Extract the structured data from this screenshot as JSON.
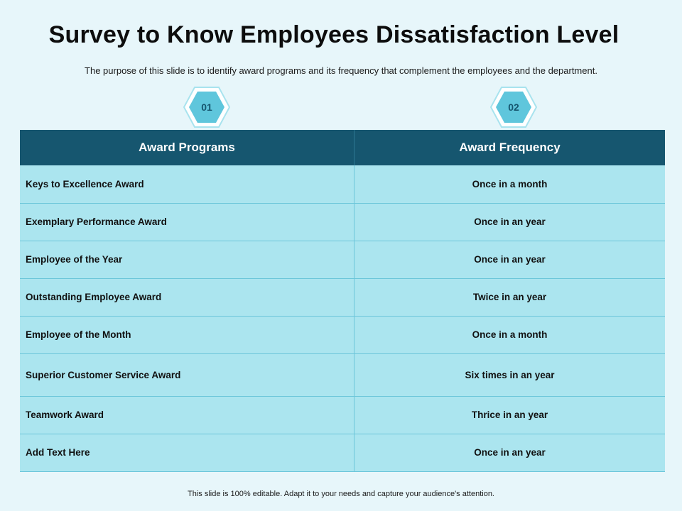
{
  "title": "Survey to Know Employees Dissatisfaction Level",
  "subtitle": "The purpose of this slide is to identify award programs and its frequency that complement the employees and the department.",
  "badges": [
    "01",
    "02"
  ],
  "table": {
    "headers": [
      "Award Programs",
      "Award Frequency"
    ],
    "rows": [
      [
        "Keys to Excellence Award",
        "Once in a month"
      ],
      [
        "Exemplary Performance Award",
        "Once in an year"
      ],
      [
        "Employee of the Year",
        "Once in an year"
      ],
      [
        "Outstanding Employee Award",
        "Twice in an year"
      ],
      [
        "Employee of the Month",
        "Once in a month"
      ],
      [
        "Superior Customer Service Award",
        "Six times in an year"
      ],
      [
        "Teamwork Award",
        "Thrice in an year"
      ],
      [
        "Add  Text Here",
        "Once in an year"
      ]
    ]
  },
  "footer": "This slide is 100% editable. Adapt it to your needs and capture your audience's attention.",
  "colors": {
    "background": "#e7f6fa",
    "header": "#16566f",
    "row": "#abe5ef",
    "hex_outer": "#a8e3ee",
    "hex_inner": "#5fc6dc"
  }
}
